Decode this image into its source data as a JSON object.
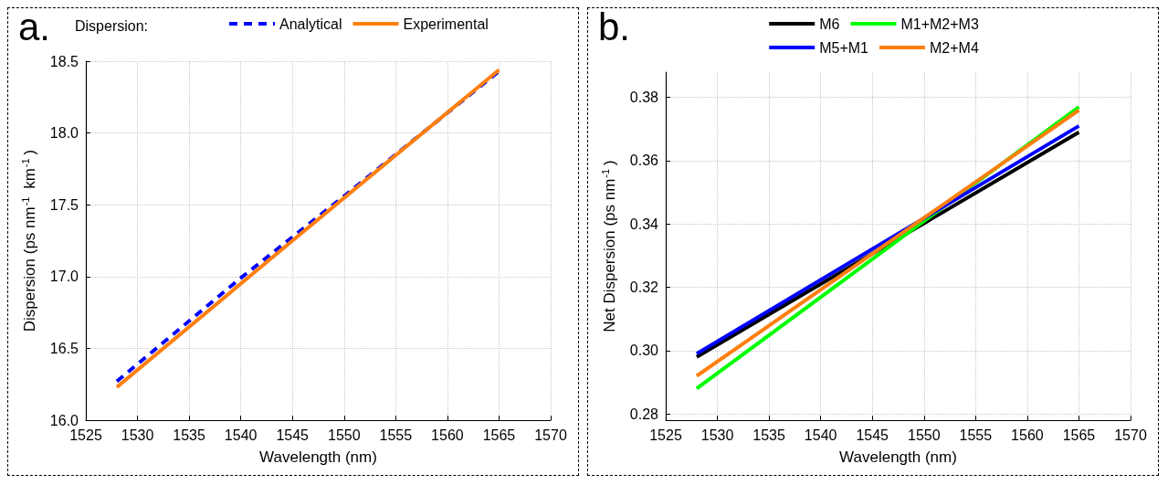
{
  "chart_data": [
    {
      "type": "line",
      "annotations": [
        "a."
      ],
      "legend_title": "Dispersion:",
      "xlabel": "Wavelength (nm)",
      "ylabel": "Dispersion (ps nm$^{-1}$ km$^{-1}$)",
      "xlim": [
        1525,
        1570
      ],
      "xticks": [
        1525,
        1530,
        1535,
        1540,
        1545,
        1550,
        1555,
        1560,
        1565,
        1570
      ],
      "ylim": [
        16.0,
        18.5
      ],
      "yticks": [
        {
          "value": 16.0,
          "label": "16.0"
        },
        {
          "value": 16.5,
          "label": "16.5"
        },
        {
          "value": 17.0,
          "label": "17.0"
        },
        {
          "value": 17.5,
          "label": "17.5"
        },
        {
          "value": 18.0,
          "label": "18.0"
        },
        {
          "value": 18.5,
          "label": "18.5"
        }
      ],
      "grid": true,
      "legend": "top",
      "marker": "none",
      "series": [
        {
          "name": "Analytical",
          "color": "#0000ff",
          "line_style": "dashed",
          "x": [
            1528,
            1540,
            1550,
            1565
          ],
          "values": [
            16.27,
            16.99,
            17.56,
            18.43
          ]
        },
        {
          "name": "Experimental",
          "color": "#ff7f0e",
          "line_style": "solid",
          "x": [
            1528,
            1545,
            1565
          ],
          "values": [
            16.23,
            17.25,
            18.44
          ]
        }
      ]
    },
    {
      "type": "line",
      "annotations": [
        "b."
      ],
      "xlabel": "Wavelength (nm)",
      "ylabel": "Net Dispersion (ps nm$^{-1}$)",
      "xlim": [
        1525,
        1570
      ],
      "xticks": [
        1525,
        1530,
        1535,
        1540,
        1545,
        1550,
        1555,
        1560,
        1565,
        1570
      ],
      "ylim": [
        0.278,
        0.388
      ],
      "yticks": [
        {
          "value": 0.28,
          "label": "0.28"
        },
        {
          "value": 0.3,
          "label": "0.30"
        },
        {
          "value": 0.32,
          "label": "0.32"
        },
        {
          "value": 0.34,
          "label": "0.34"
        },
        {
          "value": 0.36,
          "label": "0.36"
        },
        {
          "value": 0.38,
          "label": "0.38"
        }
      ],
      "grid": true,
      "legend": "top",
      "marker": "none",
      "line_style": "solid",
      "series": [
        {
          "name": "M6",
          "color": "#000000",
          "x": [
            1528,
            1565
          ],
          "values": [
            0.298,
            0.369
          ]
        },
        {
          "name": "M1+M2+M3",
          "color": "#00ff00",
          "x": [
            1528,
            1565
          ],
          "values": [
            0.288,
            0.377
          ]
        },
        {
          "name": "M5+M1",
          "color": "#0000ff",
          "x": [
            1528,
            1565
          ],
          "values": [
            0.299,
            0.371
          ]
        },
        {
          "name": "M2+M4",
          "color": "#ff7f0e",
          "x": [
            1528,
            1565
          ],
          "values": [
            0.292,
            0.376
          ]
        }
      ]
    }
  ]
}
